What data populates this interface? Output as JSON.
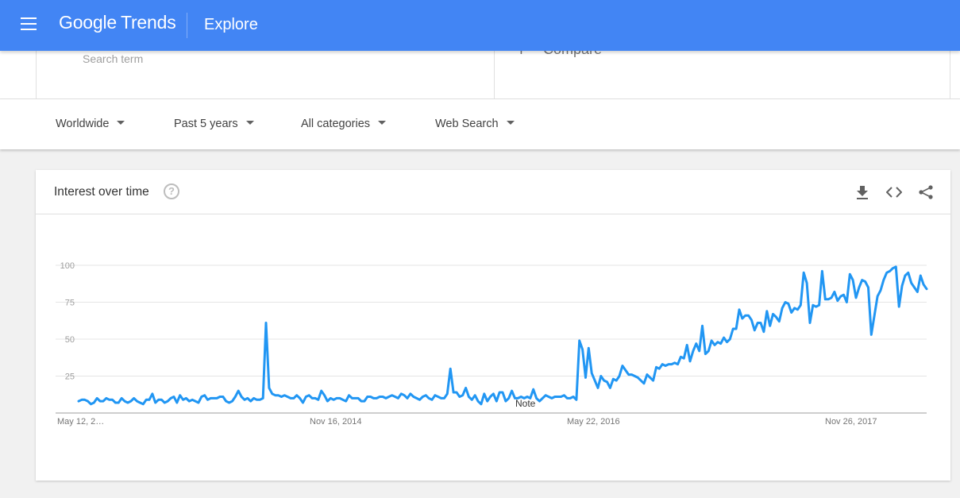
{
  "header": {
    "logo_google": "Google",
    "logo_trends": "Trends",
    "section": "Explore",
    "menu_icon": "hamburger-menu-icon"
  },
  "search": {
    "term_placeholder": "Search term",
    "compare_plus": "+",
    "compare_label": "Compare"
  },
  "filters": {
    "region": "Worldwide",
    "time": "Past 5 years",
    "category": "All categories",
    "property": "Web Search"
  },
  "card": {
    "title": "Interest over time",
    "help_icon": "?",
    "tools": [
      "download-icon",
      "embed-code-icon",
      "share-icon"
    ],
    "note_label": "Note"
  },
  "colors": {
    "header_blue": "#4285f4",
    "series_blue": "#2196f3"
  },
  "chart_data": {
    "type": "line",
    "title": "Interest over time",
    "ylim": [
      0,
      100
    ],
    "yticks": [
      100,
      75,
      50,
      25
    ],
    "xticks": [
      "May 12, 2…",
      "Nov 16, 2014",
      "May 22, 2016",
      "Nov 26, 2017"
    ],
    "grid": true,
    "series": [
      {
        "values": [
          8,
          9,
          9,
          8,
          6,
          7,
          10,
          8,
          8,
          10,
          9,
          9,
          7,
          7,
          10,
          8,
          7,
          8,
          10,
          8,
          7,
          6,
          9,
          9,
          13,
          7,
          9,
          9,
          7,
          8,
          10,
          11,
          7,
          12,
          9,
          10,
          8,
          9,
          8,
          7,
          11,
          12,
          9,
          10,
          10,
          10,
          11,
          11,
          8,
          7,
          8,
          11,
          15,
          11,
          9,
          10,
          8,
          10,
          9,
          9,
          10,
          61,
          17,
          13,
          12,
          12,
          11,
          12,
          11,
          10,
          10,
          12,
          10,
          7,
          11,
          12,
          10,
          10,
          9,
          15,
          12,
          8,
          10,
          9,
          10,
          10,
          9,
          8,
          12,
          10,
          10,
          10,
          8,
          8,
          11,
          11,
          10,
          10,
          11,
          11,
          10,
          11,
          12,
          11,
          10,
          13,
          12,
          10,
          13,
          11,
          10,
          9,
          11,
          12,
          10,
          9,
          12,
          11,
          10,
          10,
          13,
          30,
          14,
          14,
          11,
          12,
          17,
          11,
          9,
          12,
          8,
          6,
          13,
          8,
          11,
          13,
          8,
          14,
          14,
          8,
          10,
          15,
          10,
          10,
          11,
          10,
          11,
          10,
          16,
          10,
          8,
          10,
          12,
          11,
          10,
          11,
          11,
          11,
          12,
          10,
          10,
          11,
          9,
          49,
          43,
          24,
          44,
          27,
          22,
          17,
          25,
          22,
          21,
          17,
          23,
          22,
          25,
          32,
          29,
          26,
          26,
          25,
          24,
          22,
          20,
          26,
          24,
          22,
          31,
          30,
          33,
          32,
          33,
          33,
          34,
          33,
          38,
          37,
          46,
          35,
          42,
          47,
          42,
          59,
          40,
          42,
          49,
          46,
          48,
          47,
          51,
          48,
          50,
          57,
          57,
          70,
          64,
          66,
          66,
          63,
          56,
          61,
          61,
          55,
          69,
          59,
          67,
          65,
          62,
          71,
          75,
          74,
          68,
          71,
          70,
          73,
          95,
          88,
          61,
          73,
          72,
          73,
          96,
          77,
          77,
          78,
          82,
          76,
          79,
          80,
          75,
          94,
          90,
          78,
          85,
          90,
          89,
          85,
          53,
          66,
          79,
          83,
          90,
          95,
          96,
          98,
          99,
          72,
          86,
          93,
          95,
          88,
          85,
          82,
          93,
          87,
          84
        ]
      }
    ]
  }
}
